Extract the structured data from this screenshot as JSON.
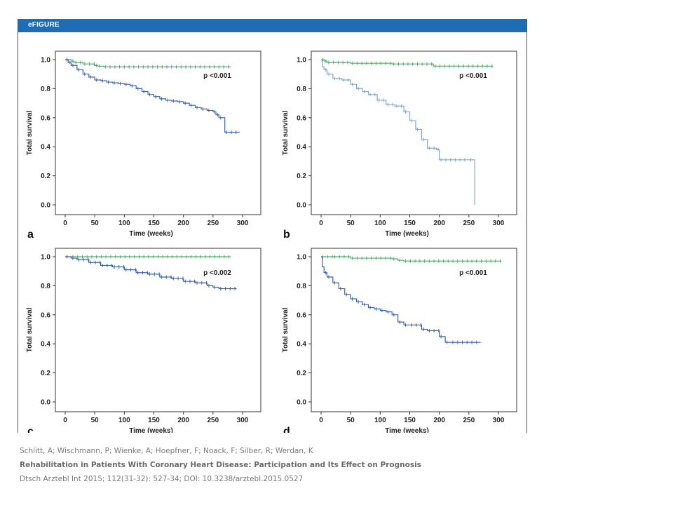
{
  "figure": {
    "label": "eFIGURE"
  },
  "caption": {
    "authors": "Schlitt, A; Wischmann, P; Wienke, A; Hoepfner, F; Noack, F; Silber, R; Werdan, K",
    "title": "Rehabilitation in Patients With Coronary Heart Disease: Participation and Its Effect on Prognosis",
    "citation": "Dtsch Arztebl Int 2015; 112(31-32): 527-34; DOI: 10.3238/arztebl.2015.0527"
  },
  "colors": {
    "green": "#4caf6a",
    "blue": "#3a64b0",
    "light_blue": "#7fa6cf"
  },
  "chart_data": [
    {
      "type": "line",
      "panel": "a",
      "xlabel": "Time (weeks)",
      "ylabel": "Total survival",
      "xlim": [
        0,
        300
      ],
      "ylim": [
        0,
        1.0
      ],
      "xticks": [
        0,
        50,
        100,
        150,
        200,
        250,
        300
      ],
      "yticks": [
        "0.0",
        "0.2",
        "0.4",
        "0.6",
        "0.8",
        "1.0"
      ],
      "annotation": "p <0.001",
      "series": [
        {
          "color": "green",
          "x": [
            0,
            10,
            15,
            30,
            50,
            55,
            65,
            280
          ],
          "y": [
            1.0,
            0.99,
            0.98,
            0.97,
            0.96,
            0.955,
            0.95,
            0.95
          ]
        },
        {
          "color": "blue",
          "x": [
            0,
            5,
            10,
            20,
            30,
            40,
            50,
            60,
            70,
            80,
            90,
            100,
            110,
            120,
            130,
            140,
            150,
            160,
            170,
            180,
            190,
            200,
            210,
            220,
            230,
            240,
            250,
            255,
            260,
            270,
            295
          ],
          "y": [
            1.0,
            0.98,
            0.96,
            0.93,
            0.9,
            0.88,
            0.86,
            0.855,
            0.845,
            0.84,
            0.835,
            0.83,
            0.82,
            0.8,
            0.78,
            0.76,
            0.745,
            0.73,
            0.72,
            0.715,
            0.71,
            0.7,
            0.685,
            0.67,
            0.66,
            0.65,
            0.64,
            0.62,
            0.6,
            0.5,
            0.5
          ]
        }
      ]
    },
    {
      "type": "line",
      "panel": "b",
      "xlabel": "Time (weeks)",
      "ylabel": "Total survival",
      "xlim": [
        0,
        300
      ],
      "ylim": [
        0,
        1.0
      ],
      "xticks": [
        0,
        50,
        100,
        150,
        200,
        250,
        300
      ],
      "yticks": [
        "0.0",
        "0.2",
        "0.4",
        "0.6",
        "0.8",
        "1.0"
      ],
      "annotation": "p <0.001",
      "series": [
        {
          "color": "green",
          "x": [
            0,
            5,
            10,
            50,
            120,
            190,
            290
          ],
          "y": [
            1.0,
            0.99,
            0.98,
            0.975,
            0.97,
            0.955,
            0.95
          ]
        },
        {
          "color": "light_blue",
          "x": [
            0,
            2,
            5,
            10,
            20,
            35,
            50,
            60,
            70,
            80,
            95,
            110,
            125,
            140,
            150,
            160,
            170,
            180,
            195,
            200,
            250,
            260,
            260
          ],
          "y": [
            1.0,
            0.95,
            0.93,
            0.9,
            0.87,
            0.86,
            0.83,
            0.8,
            0.78,
            0.76,
            0.72,
            0.69,
            0.68,
            0.64,
            0.58,
            0.52,
            0.45,
            0.39,
            0.38,
            0.31,
            0.31,
            0.31,
            0.0
          ]
        }
      ]
    },
    {
      "type": "line",
      "panel": "c",
      "xlabel": "Time (weeks)",
      "ylabel": "Total survival",
      "xlim": [
        0,
        300
      ],
      "ylim": [
        0,
        1.0
      ],
      "xticks": [
        0,
        50,
        100,
        150,
        200,
        250,
        300
      ],
      "yticks": [
        "0.0",
        "0.2",
        "0.4",
        "0.6",
        "0.8",
        "1.0"
      ],
      "annotation": "p <0.002",
      "series": [
        {
          "color": "green",
          "x": [
            0,
            10,
            280
          ],
          "y": [
            1.0,
            1.0,
            1.0
          ]
        },
        {
          "color": "blue",
          "x": [
            0,
            10,
            20,
            40,
            60,
            80,
            100,
            120,
            140,
            160,
            180,
            200,
            220,
            240,
            250,
            260,
            290
          ],
          "y": [
            1.0,
            0.99,
            0.98,
            0.96,
            0.94,
            0.93,
            0.91,
            0.89,
            0.88,
            0.86,
            0.85,
            0.83,
            0.82,
            0.8,
            0.79,
            0.78,
            0.78
          ]
        }
      ]
    },
    {
      "type": "line",
      "panel": "d",
      "xlabel": "Time (weeks)",
      "ylabel": "Total survival",
      "xlim": [
        0,
        300
      ],
      "ylim": [
        0,
        1.0
      ],
      "xticks": [
        0,
        50,
        100,
        150,
        200,
        250,
        300
      ],
      "yticks": [
        "0.0",
        "0.2",
        "0.4",
        "0.6",
        "0.8",
        "1.0"
      ],
      "annotation": "p <0.001",
      "series": [
        {
          "color": "green",
          "x": [
            0,
            20,
            50,
            120,
            130,
            140,
            305
          ],
          "y": [
            1.0,
            1.0,
            0.99,
            0.985,
            0.975,
            0.97,
            0.97
          ]
        },
        {
          "color": "blue",
          "x": [
            0,
            2,
            5,
            10,
            20,
            30,
            40,
            50,
            60,
            70,
            80,
            90,
            100,
            110,
            120,
            130,
            140,
            150,
            170,
            180,
            200,
            210,
            220,
            270
          ],
          "y": [
            1.0,
            0.93,
            0.89,
            0.86,
            0.82,
            0.78,
            0.74,
            0.71,
            0.69,
            0.67,
            0.65,
            0.64,
            0.63,
            0.62,
            0.6,
            0.55,
            0.53,
            0.53,
            0.5,
            0.49,
            0.45,
            0.41,
            0.41,
            0.41
          ]
        }
      ]
    }
  ]
}
